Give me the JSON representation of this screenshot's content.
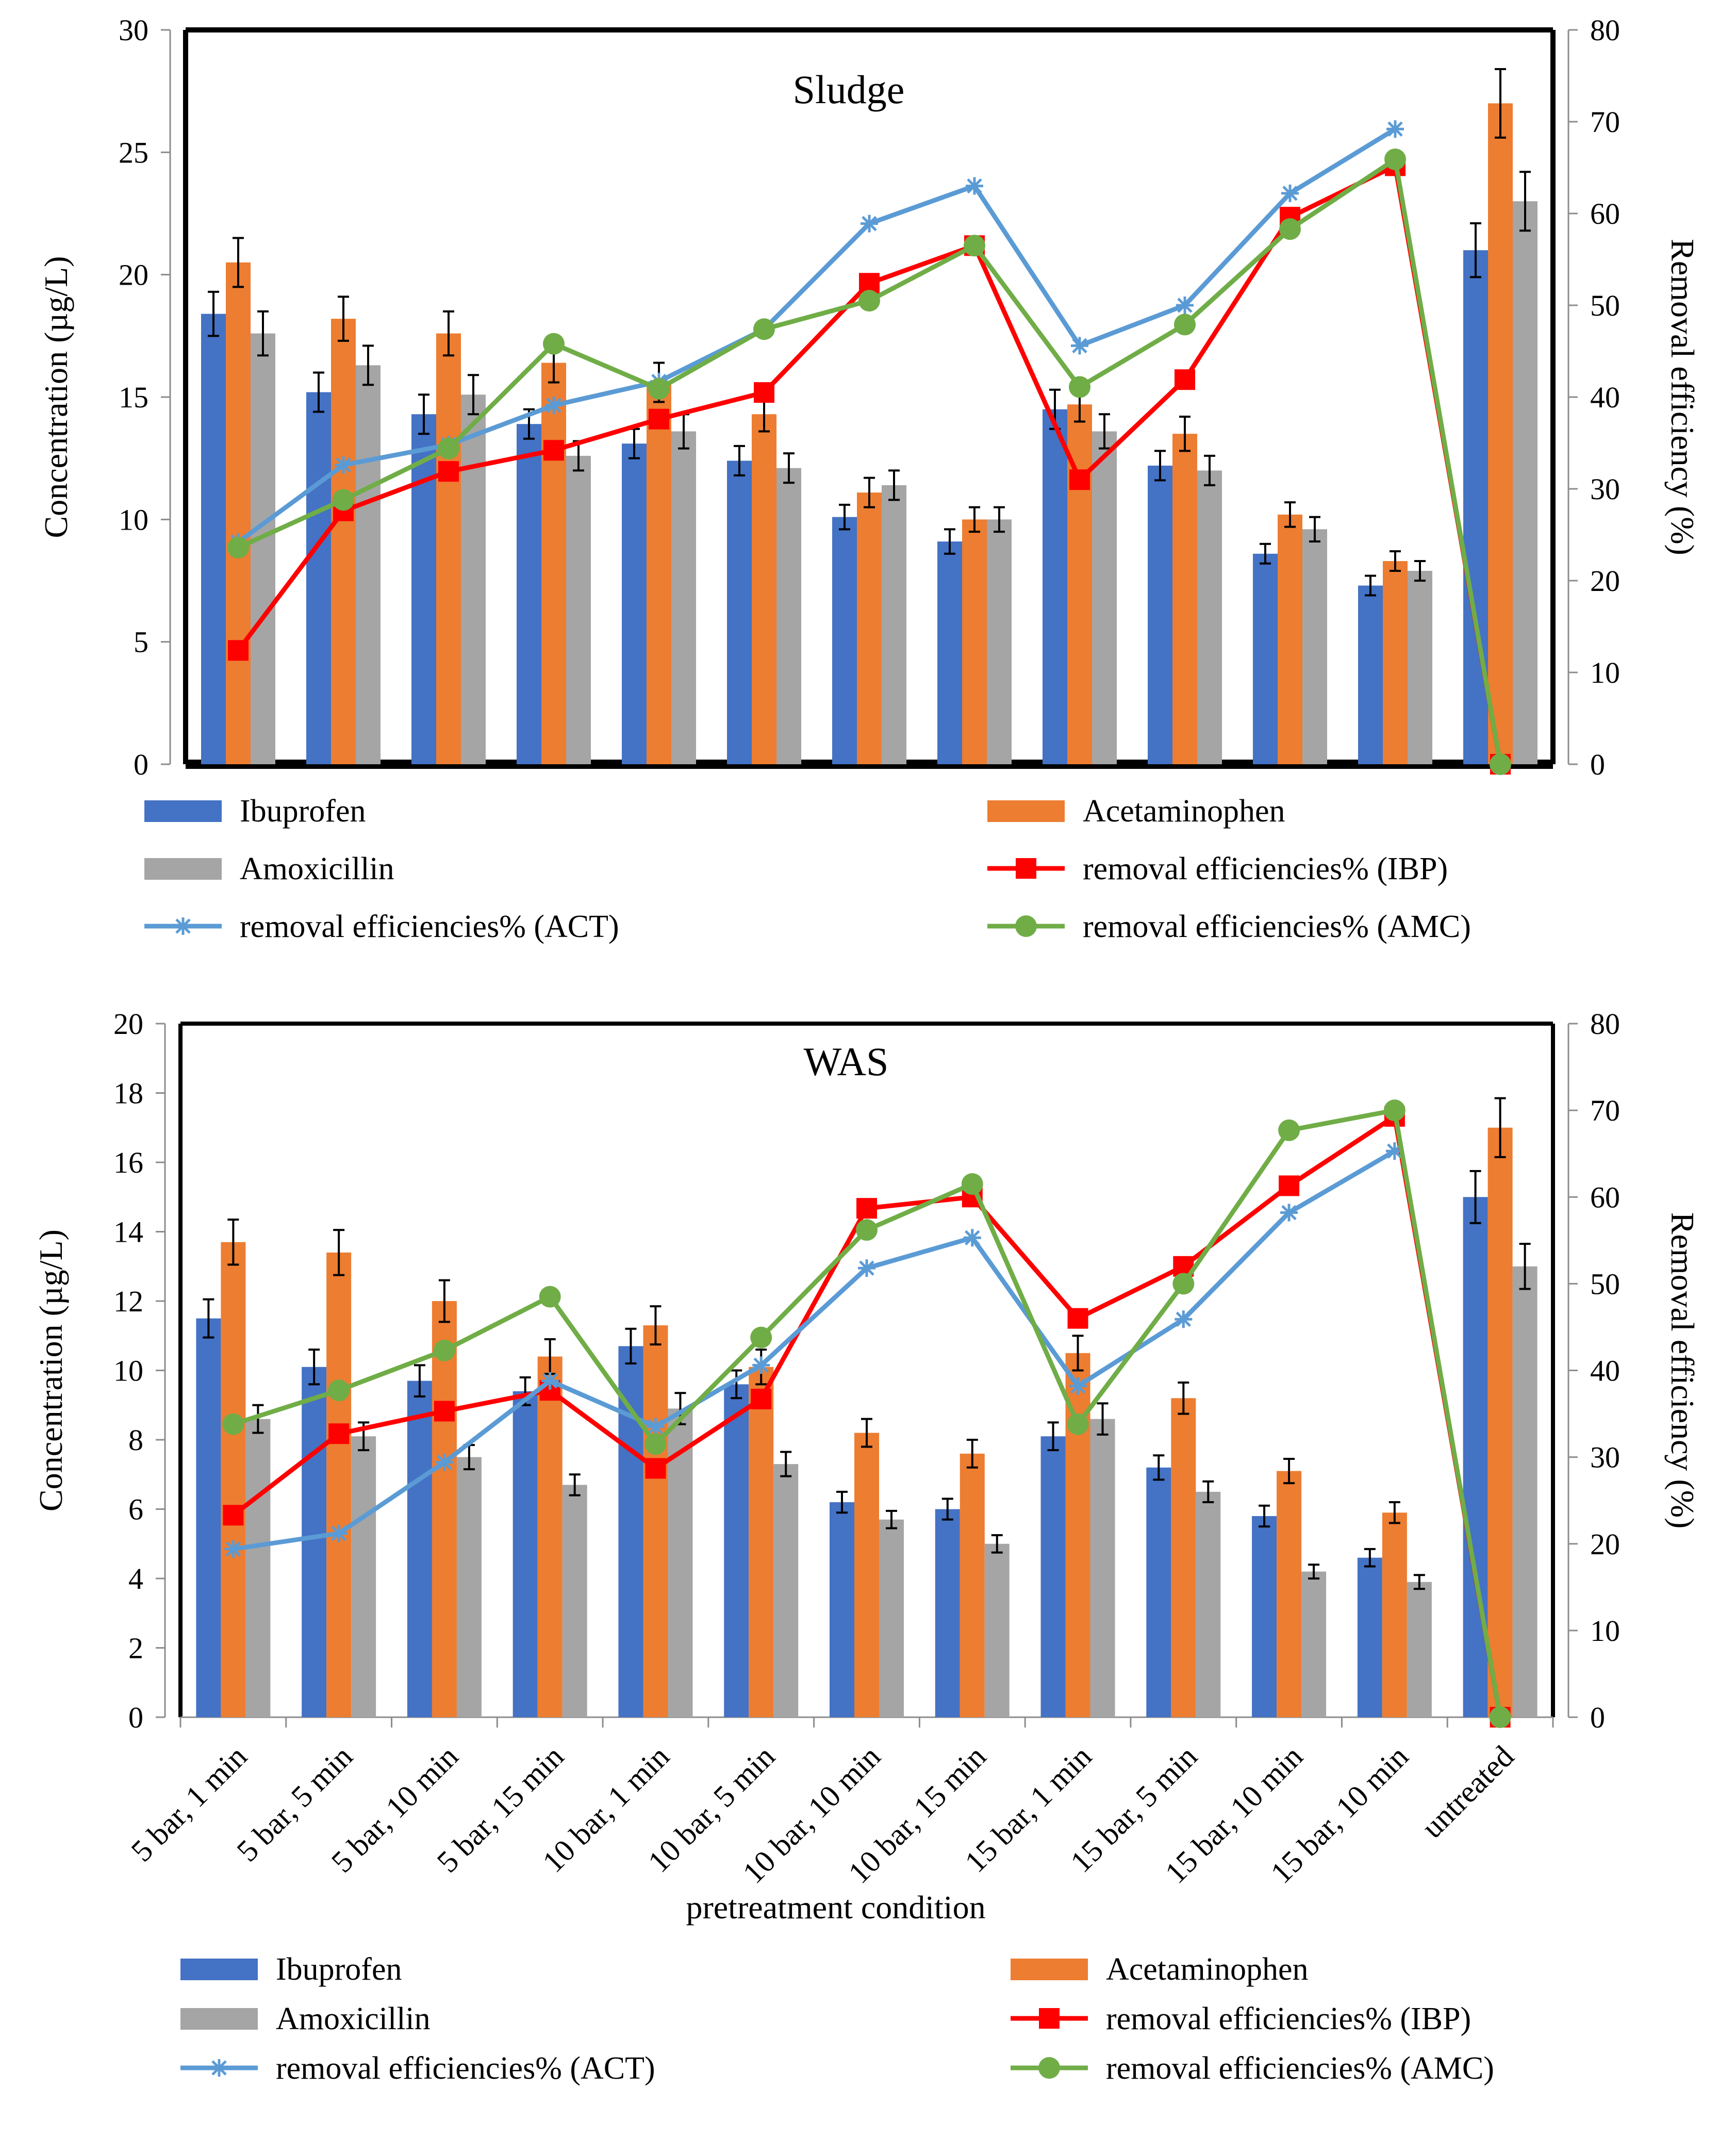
{
  "colors": {
    "ibuprofen": "#4472c4",
    "acetaminophen": "#ed7d31",
    "amoxicillin": "#a5a5a5",
    "ibp_line": "#ff0000",
    "act_line": "#5b9bd5",
    "amc_line": "#70ad47"
  },
  "chart_data": [
    {
      "type": "bar",
      "title": "Sludge",
      "xlabel": "",
      "ylabel": "Concentration (µg/L)",
      "y2label": "Removal efficiency (%)",
      "ylim": [
        0,
        30
      ],
      "y_ticks": [
        "0",
        "5",
        "10",
        "15",
        "20",
        "25",
        "30"
      ],
      "y2lim": [
        0,
        80
      ],
      "y2_ticks": [
        "0",
        "10",
        "20",
        "30",
        "40",
        "50",
        "60",
        "70",
        "80"
      ],
      "categories": [
        "5 bar, 1 min",
        "5 bar, 5 min",
        "5 bar, 10 min",
        "5 bar, 15 min",
        "10 bar, 1 min",
        "10 bar, 5 min",
        "10 bar, 10 min",
        "10 bar, 15 min",
        "15 bar, 1 min",
        "15 bar, 5 min",
        "15 bar, 10 min",
        "15 bar, 10 min",
        "untreated"
      ],
      "series": [
        {
          "name": "Ibuprofen",
          "kind": "bar",
          "axis": "left",
          "values": [
            18.4,
            15.2,
            14.3,
            13.9,
            13.1,
            12.4,
            10.1,
            9.1,
            14.5,
            12.2,
            8.6,
            7.3,
            21.0
          ],
          "error": [
            0.9,
            0.8,
            0.8,
            0.6,
            0.6,
            0.6,
            0.5,
            0.5,
            0.8,
            0.6,
            0.4,
            0.4,
            1.1
          ]
        },
        {
          "name": "Acetaminophen",
          "kind": "bar",
          "axis": "left",
          "values": [
            20.5,
            18.2,
            17.6,
            16.4,
            15.6,
            14.3,
            11.1,
            10.0,
            14.7,
            13.5,
            10.2,
            8.3,
            27.0
          ],
          "error": [
            1.0,
            0.9,
            0.9,
            0.8,
            0.8,
            0.7,
            0.6,
            0.5,
            0.7,
            0.7,
            0.5,
            0.4,
            1.4
          ]
        },
        {
          "name": "Amoxicillin",
          "kind": "bar",
          "axis": "left",
          "values": [
            17.6,
            16.3,
            15.1,
            12.6,
            13.6,
            12.1,
            11.4,
            10.0,
            13.6,
            12.0,
            9.6,
            7.9,
            23.0
          ],
          "error": [
            0.9,
            0.8,
            0.8,
            0.6,
            0.7,
            0.6,
            0.6,
            0.5,
            0.7,
            0.6,
            0.5,
            0.4,
            1.2
          ]
        },
        {
          "name": "removal efficiencies% (IBP)",
          "kind": "line",
          "axis": "right",
          "marker": "square",
          "values": [
            12.4,
            27.6,
            31.9,
            34.2,
            37.6,
            40.5,
            52.4,
            56.5,
            31.0,
            41.9,
            59.6,
            65.2,
            0
          ]
        },
        {
          "name": "removal efficiencies% (ACT)",
          "kind": "line",
          "axis": "right",
          "marker": "star",
          "values": [
            24.2,
            32.6,
            34.8,
            39.1,
            41.7,
            47.4,
            58.9,
            63.0,
            45.6,
            50.0,
            62.2,
            69.2,
            null
          ]
        },
        {
          "name": "removal efficiencies% (AMC)",
          "kind": "line",
          "axis": "right",
          "marker": "circle",
          "values": [
            23.6,
            28.8,
            34.4,
            45.8,
            40.9,
            47.4,
            50.5,
            56.5,
            41.1,
            47.9,
            58.3,
            65.9,
            0
          ]
        }
      ]
    },
    {
      "type": "bar",
      "title": "WAS",
      "xlabel": "pretreatment condition",
      "ylabel": "Concentration (µg/L)",
      "y2label": "Removal efficiency (%)",
      "ylim": [
        0,
        20
      ],
      "y_ticks": [
        "0",
        "2",
        "4",
        "6",
        "8",
        "10",
        "12",
        "14",
        "16",
        "18",
        "20"
      ],
      "y2lim": [
        0,
        80
      ],
      "y2_ticks": [
        "0",
        "10",
        "20",
        "30",
        "40",
        "50",
        "60",
        "70",
        "80"
      ],
      "categories": [
        "5 bar, 1 min",
        "5 bar, 5 min",
        "5 bar, 10 min",
        "5 bar, 15 min",
        "10 bar, 1 min",
        "10 bar, 5 min",
        "10 bar, 10 min",
        "10 bar, 15 min",
        "15 bar, 1 min",
        "15 bar, 5 min",
        "15 bar, 10 min",
        "15 bar, 10 min",
        "untreated"
      ],
      "series": [
        {
          "name": "Ibuprofen",
          "kind": "bar",
          "axis": "left",
          "values": [
            11.5,
            10.1,
            9.7,
            9.4,
            10.7,
            9.6,
            6.2,
            6.0,
            8.1,
            7.2,
            5.8,
            4.6,
            15.0
          ],
          "error": [
            0.55,
            0.5,
            0.45,
            0.4,
            0.5,
            0.4,
            0.3,
            0.3,
            0.4,
            0.35,
            0.3,
            0.25,
            0.75
          ]
        },
        {
          "name": "Acetaminophen",
          "kind": "bar",
          "axis": "left",
          "values": [
            13.7,
            13.4,
            12.0,
            10.4,
            11.3,
            10.1,
            8.2,
            7.6,
            10.5,
            9.2,
            7.1,
            5.9,
            17.0
          ],
          "error": [
            0.65,
            0.65,
            0.6,
            0.5,
            0.55,
            0.5,
            0.4,
            0.4,
            0.5,
            0.45,
            0.35,
            0.3,
            0.85
          ]
        },
        {
          "name": "Amoxicillin",
          "kind": "bar",
          "axis": "left",
          "values": [
            8.6,
            8.1,
            7.5,
            6.7,
            8.9,
            7.3,
            5.7,
            5.0,
            8.6,
            6.5,
            4.2,
            3.9,
            13.0
          ],
          "error": [
            0.4,
            0.4,
            0.35,
            0.3,
            0.45,
            0.35,
            0.25,
            0.25,
            0.45,
            0.3,
            0.2,
            0.2,
            0.65
          ]
        },
        {
          "name": "removal efficiencies% (IBP)",
          "kind": "line",
          "axis": "right",
          "marker": "square",
          "values": [
            23.3,
            32.7,
            35.3,
            37.7,
            28.7,
            36.7,
            58.7,
            60.0,
            46.0,
            52.0,
            61.3,
            69.3,
            0
          ]
        },
        {
          "name": "removal efficiencies% (ACT)",
          "kind": "line",
          "axis": "right",
          "marker": "star",
          "values": [
            19.4,
            21.2,
            29.4,
            38.8,
            33.5,
            40.6,
            51.8,
            55.3,
            38.2,
            45.9,
            58.2,
            65.3,
            null
          ]
        },
        {
          "name": "removal efficiencies% (AMC)",
          "kind": "line",
          "axis": "right",
          "marker": "circle",
          "values": [
            33.8,
            37.7,
            42.3,
            48.5,
            31.5,
            43.8,
            56.2,
            61.5,
            33.8,
            50.0,
            67.7,
            70.0,
            0
          ]
        }
      ]
    }
  ]
}
